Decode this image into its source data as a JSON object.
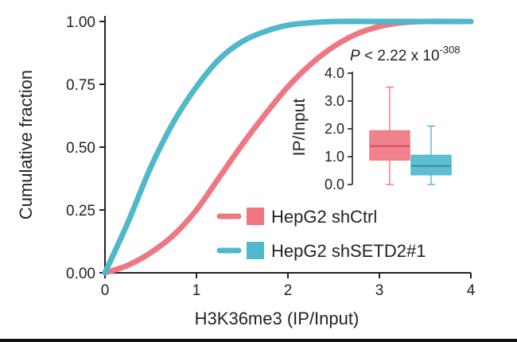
{
  "chart_data": {
    "type": "line",
    "xlabel": "H3K36me3 (IP/Input)",
    "ylabel": "Cumulative fraction",
    "xlim": [
      0,
      4
    ],
    "ylim": [
      0,
      1
    ],
    "x_ticks": [
      "0",
      "1",
      "2",
      "3",
      "4"
    ],
    "y_ticks": [
      "0.00",
      "0.25",
      "0.50",
      "0.75",
      "1.00"
    ],
    "grid": false,
    "legend_position": "bottom-right",
    "series": [
      {
        "name": "HepG2 shCtrl",
        "color": "#ef7782",
        "x": [
          0,
          0.25,
          0.5,
          0.75,
          1.0,
          1.25,
          1.5,
          1.75,
          2.0,
          2.25,
          2.5,
          2.75,
          3.0,
          3.25,
          3.5,
          4.0
        ],
        "y": [
          0,
          0.03,
          0.08,
          0.15,
          0.25,
          0.38,
          0.51,
          0.63,
          0.74,
          0.83,
          0.9,
          0.95,
          0.98,
          0.995,
          1.0,
          1.0
        ]
      },
      {
        "name": "HepG2 shSETD2#1",
        "color": "#4fb8cc",
        "x": [
          0,
          0.25,
          0.5,
          0.75,
          1.0,
          1.25,
          1.5,
          1.75,
          2.0,
          2.25,
          2.5,
          3.0,
          4.0
        ],
        "y": [
          0,
          0.2,
          0.42,
          0.6,
          0.74,
          0.85,
          0.92,
          0.96,
          0.985,
          0.995,
          1.0,
          1.0,
          1.0
        ]
      }
    ],
    "annotation": {
      "p_base": "P",
      "p_mid": " < 2.22 x 10",
      "p_exp": "-308"
    },
    "inset": {
      "type": "box",
      "ylabel": "IP/Input",
      "ylim": [
        0,
        4
      ],
      "y_ticks": [
        "0.0",
        "1.0",
        "2.0",
        "3.0",
        "4.0"
      ],
      "boxes": [
        {
          "name": "HepG2 shCtrl",
          "color": "#ef7782",
          "whisker_low": 0,
          "q1": 0.88,
          "median": 1.38,
          "q3": 1.93,
          "whisker_high": 3.5
        },
        {
          "name": "HepG2 shSETD2#1",
          "color": "#4fb8cc",
          "whisker_low": 0,
          "q1": 0.35,
          "median": 0.67,
          "q3": 1.05,
          "whisker_high": 2.1
        }
      ]
    }
  }
}
